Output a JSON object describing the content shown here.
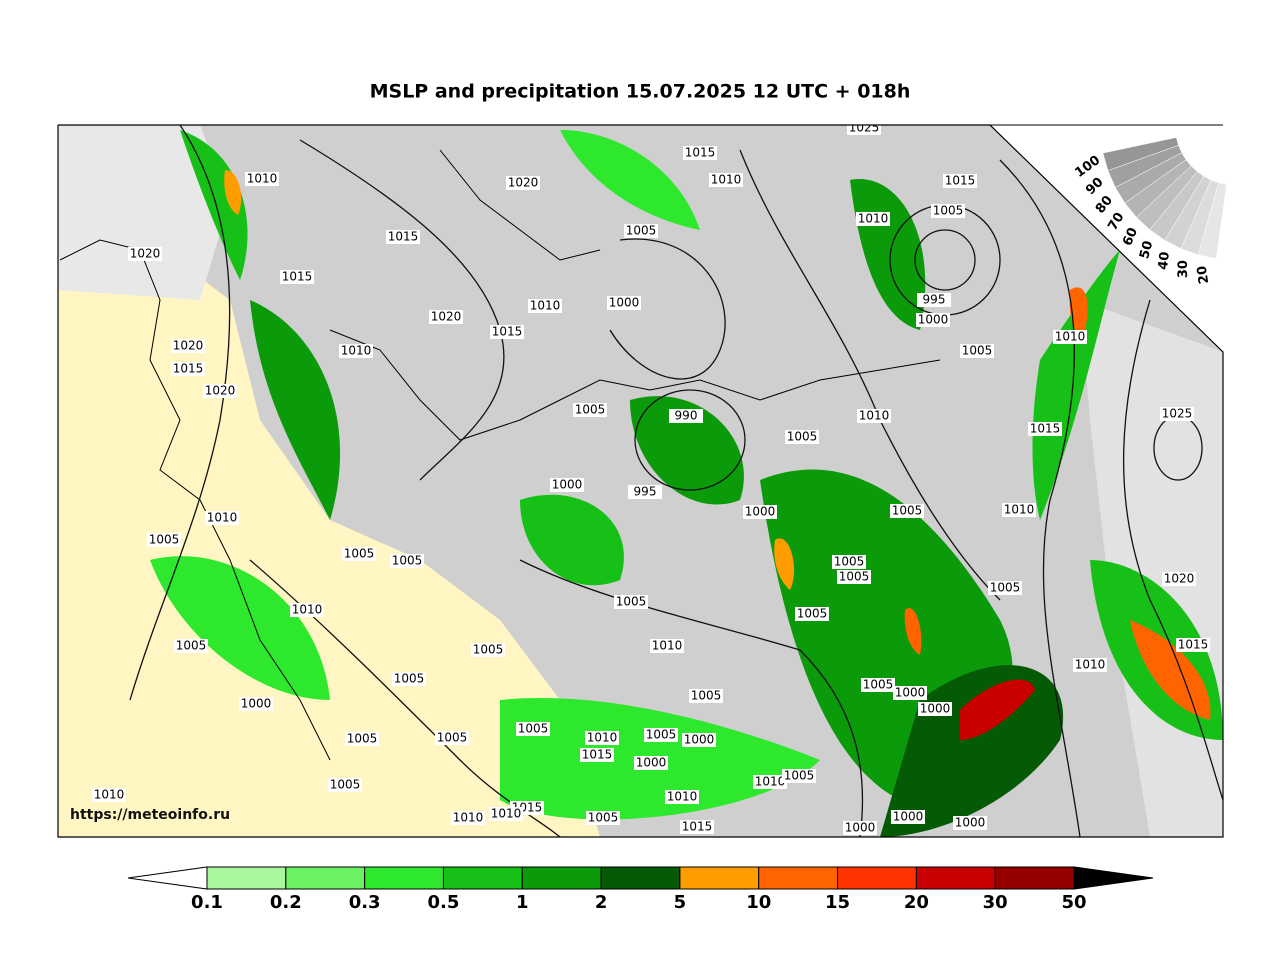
{
  "title": "MSLP and precipitation 15.07.2025 12 UTC + 018h",
  "watermark": "https://meteoinfo.ru",
  "isobar_labels": [
    1025,
    1015,
    1010,
    1020,
    1010,
    1015,
    1010,
    1005,
    1015,
    1005,
    1020,
    1015,
    1010,
    1000,
    1020,
    1015,
    995,
    1000,
    1010,
    1020,
    1015,
    1005,
    1010,
    1020,
    1005,
    990,
    1010,
    1005,
    1015,
    1025,
    1000,
    995,
    1000,
    1010,
    1005,
    1010,
    1005,
    1005,
    1005,
    1005,
    1005,
    1005,
    1020,
    1010,
    1005,
    1005,
    1005,
    1010,
    1015,
    1005,
    1010,
    1005,
    1005,
    1000,
    1005,
    1000,
    1000,
    1005,
    1010,
    1005,
    1000,
    1005,
    1005,
    1015,
    1000,
    1005,
    1010,
    1005,
    1010,
    1010,
    1015,
    1010,
    1010,
    1005,
    1015,
    1000,
    1000,
    1000
  ],
  "precip_legend": {
    "labels": [
      0.1,
      0.2,
      0.3,
      0.5,
      1,
      2,
      5,
      10,
      15,
      20,
      30,
      50
    ],
    "colors": [
      "#ffffff",
      "#aaf7a0",
      "#6cf064",
      "#2ee82e",
      "#16c016",
      "#0a9a0a",
      "#055a05",
      "#ff9c00",
      "#ff6400",
      "#ff3200",
      "#c80000",
      "#960000",
      "#000000"
    ]
  },
  "cloud_scale": {
    "labels": [
      100,
      90,
      80,
      70,
      60,
      50,
      40,
      30,
      20
    ]
  }
}
